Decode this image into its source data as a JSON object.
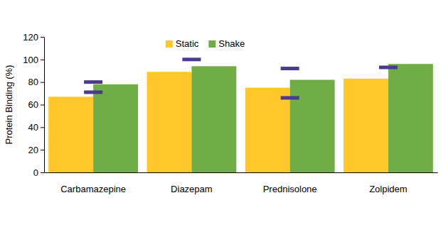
{
  "chart_data": {
    "type": "bar",
    "y_label": "Protein Binding (%)",
    "categories": [
      "Carbamazepine",
      "Diazepam",
      "Prednisolone",
      "Zolpidem"
    ],
    "series": [
      {
        "name": "Static",
        "color": "#ffc72c",
        "values": [
          67,
          89,
          75,
          83
        ]
      },
      {
        "name": "Shake",
        "color": "#70ad47",
        "values": [
          78,
          94,
          82,
          96
        ]
      },
      {
        "type": "marker",
        "marker": "dash",
        "color": "#4b3b8f",
        "values": [
          80,
          100,
          92,
          93
        ]
      },
      {
        "type": "marker",
        "marker": "dash",
        "color": "#4b3b8f",
        "values": [
          71,
          null,
          66,
          null
        ]
      }
    ],
    "ylim": [
      0,
      120
    ],
    "yticks": [
      0,
      20,
      40,
      60,
      80,
      100,
      120
    ],
    "grid": false,
    "legend": "top"
  }
}
